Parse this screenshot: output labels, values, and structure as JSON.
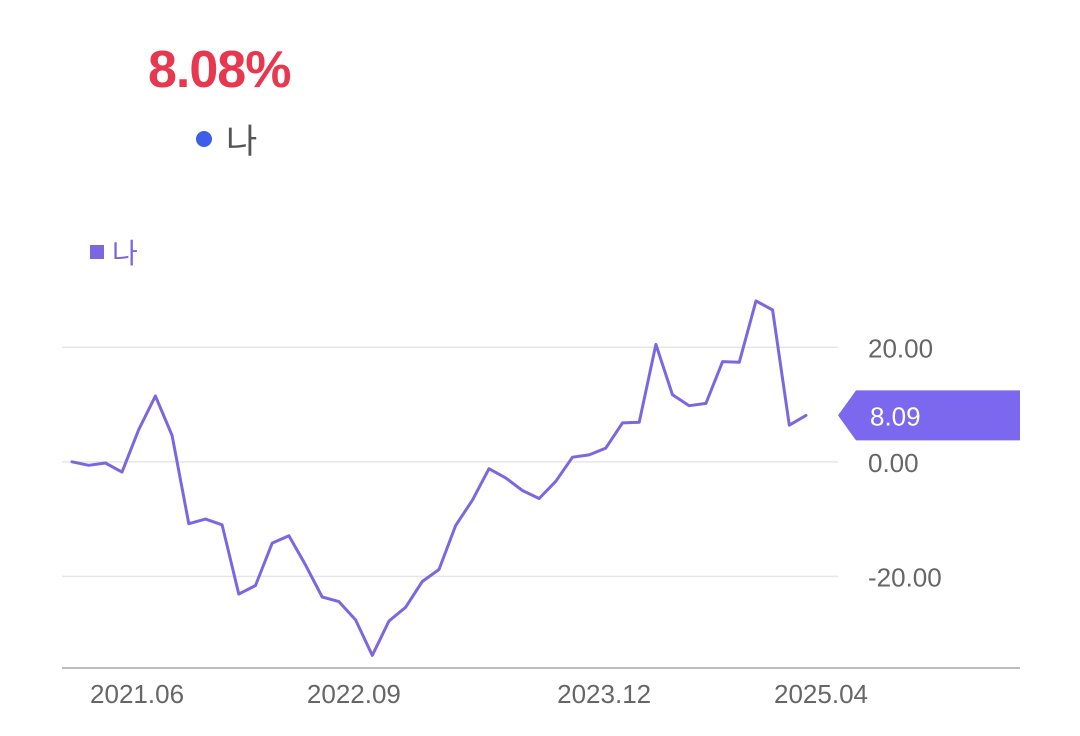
{
  "headline": {
    "value": "8.08%",
    "color": "#e8384f"
  },
  "top_legend": {
    "label": "나",
    "dot_color": "#3d5ee8"
  },
  "series_legend": {
    "label": "나",
    "color": "#7b68e0"
  },
  "current_value_tag": {
    "label": "8.09",
    "color": "#7b68ee"
  },
  "chart_data": {
    "type": "line",
    "title": "",
    "xlabel": "",
    "ylabel": "",
    "ylim": [
      -36,
      30
    ],
    "y_ticks": [
      {
        "value": 20,
        "label": "20.00"
      },
      {
        "value": 0,
        "label": "0.00"
      },
      {
        "value": -20,
        "label": "-20.00"
      }
    ],
    "x_ticks": [
      {
        "index": 3,
        "label": "2021.06"
      },
      {
        "index": 16,
        "label": "2022.09"
      },
      {
        "index": 31,
        "label": "2023.12"
      },
      {
        "index": 44,
        "label": "2025.04"
      }
    ],
    "grid": true,
    "legend_position": "top-left",
    "series": [
      {
        "name": "나",
        "color": "#7b68e0",
        "values": [
          0.0,
          -0.6,
          -0.2,
          -1.8,
          5.6,
          11.5,
          4.6,
          -10.8,
          -10.0,
          -11.0,
          -23.1,
          -21.6,
          -14.2,
          -12.9,
          -18.0,
          -23.6,
          -24.4,
          -27.6,
          -33.8,
          -27.8,
          -25.4,
          -20.9,
          -18.8,
          -11.1,
          -6.7,
          -1.2,
          -2.8,
          -5.0,
          -6.4,
          -3.4,
          0.8,
          1.2,
          2.4,
          6.8,
          6.9,
          20.5,
          11.7,
          9.8,
          10.2,
          17.5,
          17.4,
          28.1,
          26.5,
          6.4,
          8.1
        ]
      }
    ]
  }
}
